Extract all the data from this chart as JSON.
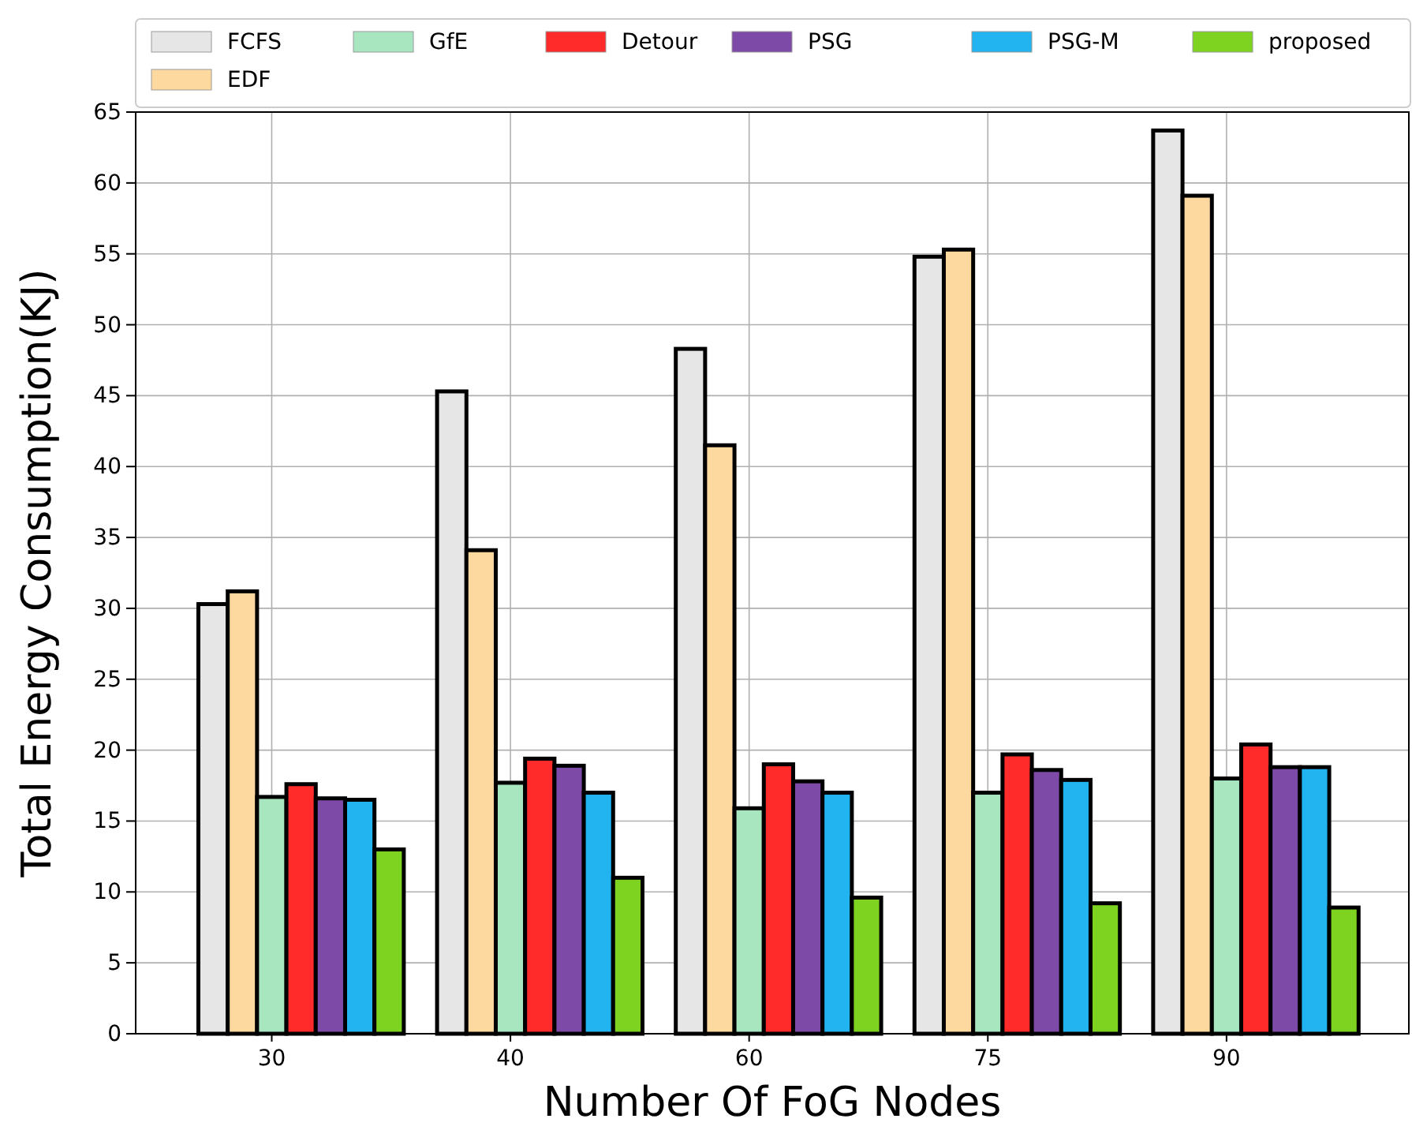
{
  "chart_data": {
    "type": "bar",
    "xlabel": "Number Of FoG Nodes",
    "ylabel": "Total Energy Consumption(KJ)",
    "categories": [
      "30",
      "40",
      "60",
      "75",
      "90"
    ],
    "series": [
      {
        "name": "FCFS",
        "color": "#e6e6e6",
        "values": [
          30.3,
          45.3,
          48.3,
          54.8,
          63.7
        ]
      },
      {
        "name": "EDF",
        "color": "#fdd9a0",
        "values": [
          31.2,
          34.1,
          41.5,
          55.3,
          59.1
        ]
      },
      {
        "name": "GfE",
        "color": "#a8e6c0",
        "values": [
          16.7,
          17.7,
          15.9,
          17.0,
          18.0
        ]
      },
      {
        "name": "Detour",
        "color": "#ff2a2a",
        "values": [
          17.6,
          19.4,
          19.0,
          19.7,
          20.4
        ]
      },
      {
        "name": "PSG",
        "color": "#7e4aa8",
        "values": [
          16.6,
          18.9,
          17.8,
          18.6,
          18.8
        ]
      },
      {
        "name": "PSG-M",
        "color": "#22b4f0",
        "values": [
          16.5,
          17.0,
          17.0,
          17.9,
          18.8
        ]
      },
      {
        "name": "proposed",
        "color": "#7ed321",
        "values": [
          13.0,
          11.0,
          9.6,
          9.2,
          8.9
        ]
      }
    ],
    "ylim": [
      0,
      65
    ],
    "yticks": [
      0,
      5,
      10,
      15,
      20,
      25,
      30,
      35,
      40,
      45,
      50,
      55,
      60,
      65
    ],
    "grid": true,
    "legend": "top"
  }
}
